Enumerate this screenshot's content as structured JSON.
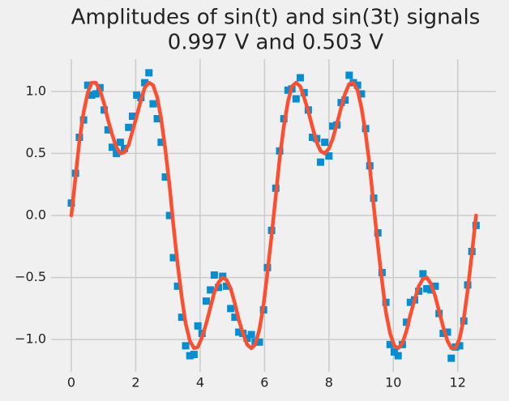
{
  "chart_data": {
    "type": "scatter",
    "title": [
      "Amplitudes of sin(t) and sin(3t) signals",
      "0.997 V and 0.503 V"
    ],
    "x": [
      0,
      0.13,
      0.25,
      0.38,
      0.51,
      0.63,
      0.76,
      0.89,
      1.02,
      1.14,
      1.27,
      1.4,
      1.52,
      1.65,
      1.78,
      1.9,
      2.03,
      2.16,
      2.28,
      2.41,
      2.54,
      2.67,
      2.79,
      2.92,
      3.05,
      3.17,
      3.3,
      3.43,
      3.55,
      3.68,
      3.81,
      3.93,
      4.06,
      4.19,
      4.32,
      4.44,
      4.57,
      4.7,
      4.82,
      4.95,
      5.08,
      5.2,
      5.33,
      5.46,
      5.59,
      5.71,
      5.84,
      5.97,
      6.09,
      6.22,
      6.35,
      6.47,
      6.6,
      6.73,
      6.85,
      6.98,
      7.11,
      7.23,
      7.36,
      7.49,
      7.62,
      7.74,
      7.87,
      8.0,
      8.12,
      8.25,
      8.38,
      8.5,
      8.63,
      8.76,
      8.89,
      9.01,
      9.14,
      9.27,
      9.39,
      9.52,
      9.65,
      9.77,
      9.9,
      10.03,
      10.15,
      10.28,
      10.41,
      10.53,
      10.66,
      10.79,
      10.92,
      11.04,
      11.17,
      11.3,
      11.42,
      11.55,
      11.68,
      11.8,
      11.93,
      12.06,
      12.19,
      12.31,
      12.44,
      12.57
    ],
    "series": [
      {
        "type": "scatter",
        "color": "#008fd5",
        "marker": "square",
        "values": [
          0.1,
          0.34,
          0.63,
          0.77,
          1.05,
          0.97,
          0.98,
          1.03,
          0.85,
          0.69,
          0.55,
          0.5,
          0.59,
          0.54,
          0.71,
          0.8,
          0.97,
          0.95,
          1.07,
          1.15,
          0.9,
          0.78,
          0.59,
          0.31,
          0.0,
          -0.34,
          -0.57,
          -0.82,
          -1.05,
          -1.13,
          -1.12,
          -0.89,
          -0.95,
          -0.69,
          -0.6,
          -0.48,
          -0.58,
          -0.49,
          -0.57,
          -0.75,
          -0.82,
          -0.94,
          -0.95,
          -0.99,
          -0.96,
          -1.02,
          -1.02,
          -0.76,
          -0.42,
          -0.12,
          0.22,
          0.52,
          0.78,
          1.01,
          1.02,
          0.94,
          1.11,
          0.99,
          0.85,
          0.63,
          0.62,
          0.43,
          0.59,
          0.48,
          0.72,
          0.73,
          0.91,
          0.93,
          1.13,
          1.07,
          1.05,
          0.98,
          0.7,
          0.4,
          0.14,
          -0.14,
          -0.46,
          -0.7,
          -1.04,
          -1.1,
          -1.13,
          -1.04,
          -0.86,
          -0.7,
          -0.68,
          -0.61,
          -0.47,
          -0.59,
          -0.6,
          -0.57,
          -0.79,
          -0.95,
          -0.94,
          -1.15,
          -1.06,
          -1.05,
          -0.85,
          -0.56,
          -0.29,
          -0.08
        ]
      },
      {
        "type": "line",
        "color": "#fc4f30",
        "values": [
          0,
          0.31,
          0.6,
          0.83,
          0.99,
          1.07,
          1.07,
          1.01,
          0.9,
          0.77,
          0.65,
          0.55,
          0.5,
          0.51,
          0.57,
          0.68,
          0.8,
          0.93,
          1.03,
          1.07,
          1.05,
          0.95,
          0.78,
          0.53,
          0.24,
          -0.08,
          -0.39,
          -0.66,
          -0.87,
          -1.01,
          -1.07,
          -1.06,
          -0.98,
          -0.87,
          -0.74,
          -0.62,
          -0.54,
          -0.5,
          -0.52,
          -0.59,
          -0.71,
          -0.84,
          -0.95,
          -1.04,
          -1.07,
          -1.04,
          -0.92,
          -0.72,
          -0.46,
          -0.16,
          0.16,
          0.46,
          0.72,
          0.92,
          1.04,
          1.07,
          1.04,
          0.95,
          0.84,
          0.71,
          0.59,
          0.52,
          0.5,
          0.54,
          0.62,
          0.74,
          0.87,
          0.98,
          1.06,
          1.07,
          1.01,
          0.87,
          0.66,
          0.39,
          0.08,
          -0.24,
          -0.53,
          -0.78,
          -0.95,
          -1.05,
          -1.07,
          -1.03,
          -0.93,
          -0.8,
          -0.68,
          -0.57,
          -0.51,
          -0.5,
          -0.55,
          -0.65,
          -0.77,
          -0.9,
          -1.01,
          -1.07,
          -1.07,
          -0.99,
          -0.83,
          -0.6,
          -0.31,
          0
        ]
      }
    ],
    "xlim": [
      -0.63,
      13.19
    ],
    "ylim": [
      -1.26,
      1.26
    ],
    "xticks": [
      0,
      2,
      4,
      6,
      8,
      10,
      12
    ],
    "yticks": [
      {
        "value": -1.0,
        "label": "−1.0"
      },
      {
        "value": -0.5,
        "label": "−0.5"
      },
      {
        "value": 0.0,
        "label": "0.0"
      },
      {
        "value": 0.5,
        "label": "0.5"
      },
      {
        "value": 1.0,
        "label": "1.0"
      }
    ],
    "grid": true
  }
}
